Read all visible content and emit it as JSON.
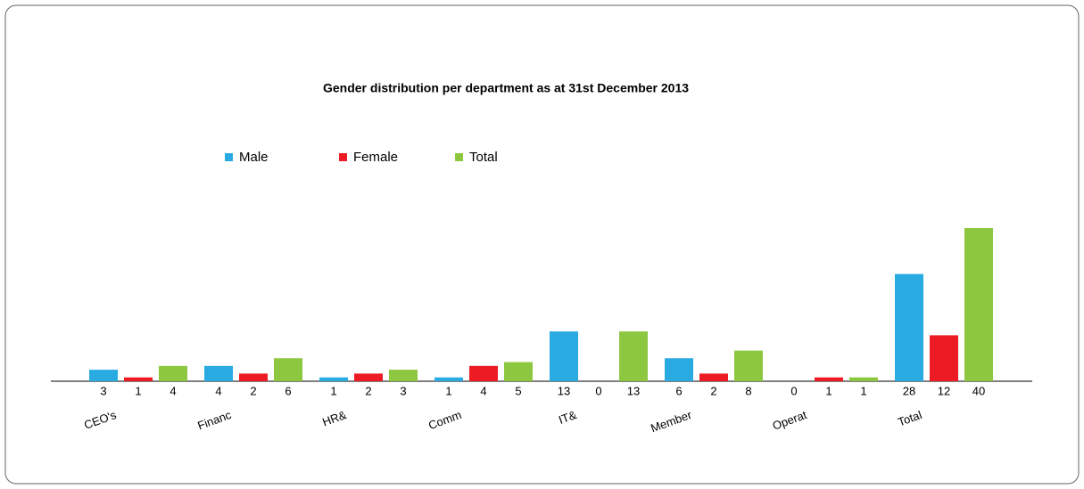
{
  "chart_data": {
    "type": "bar",
    "title": "Gender distribution per department as at 31st December 2013",
    "categories": [
      "CEO's",
      "Financ",
      "HR&",
      "Comm",
      "IT&",
      "Member",
      "Operat",
      "Total"
    ],
    "series": [
      {
        "name": "Male",
        "color": "#29abe2",
        "values": [
          3,
          4,
          1,
          1,
          13,
          6,
          0,
          28
        ]
      },
      {
        "name": "Female",
        "color": "#ed1c24",
        "values": [
          1,
          2,
          2,
          4,
          0,
          2,
          1,
          12
        ]
      },
      {
        "name": "Total",
        "color": "#8dc63f",
        "values": [
          4,
          6,
          3,
          5,
          13,
          8,
          1,
          40
        ]
      }
    ],
    "legend": "top-left"
  }
}
